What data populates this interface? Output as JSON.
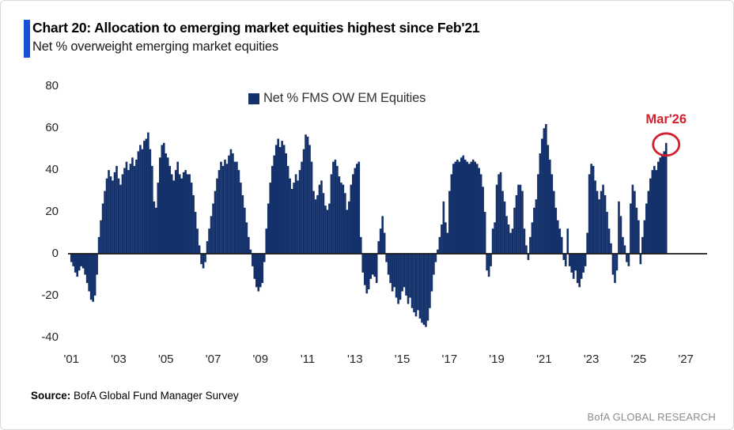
{
  "header": {
    "title": "Chart 20: Allocation to emerging market equities highest since Feb'21",
    "subtitle": "Net % overweight emerging market equities",
    "accent_color": "#1553D6"
  },
  "footer": {
    "source_label": "Source:",
    "source_text": " BofA Global Fund Manager Survey",
    "brand": "BofA GLOBAL RESEARCH"
  },
  "chart_data": {
    "type": "bar",
    "legend": "Net % FMS OW EM Equities",
    "frequency": "monthly",
    "x_start": "2001-01",
    "x_end": "2026-03",
    "ylim": [
      -40,
      80
    ],
    "y_ticks": [
      80,
      60,
      40,
      20,
      0,
      -20,
      -40
    ],
    "x_tick_labels": [
      "'01",
      "'03",
      "'05",
      "'07",
      "'09",
      "'11",
      "'13",
      "'15",
      "'17",
      "'19",
      "'21",
      "'23",
      "'25",
      "'27"
    ],
    "grid": "off",
    "legend_position": "top-center",
    "bar_color": "#14316B",
    "axis_color": "#1a1a1a",
    "annotation": {
      "label": "Mar'26",
      "month": "2026-03",
      "value": 53,
      "color": "#D2202E"
    },
    "values": [
      -4,
      -6,
      -9,
      -11,
      -8,
      -6,
      -7,
      -10,
      -14,
      -18,
      -22,
      -23,
      -20,
      -10,
      8,
      16,
      24,
      30,
      36,
      40,
      37,
      35,
      39,
      42,
      36,
      33,
      38,
      41,
      44,
      40,
      43,
      46,
      42,
      45,
      49,
      52,
      50,
      54,
      55,
      58,
      50,
      42,
      25,
      22,
      34,
      46,
      52,
      53,
      48,
      46,
      42,
      38,
      35,
      40,
      44,
      38,
      36,
      39,
      40,
      38,
      38,
      34,
      28,
      20,
      12,
      4,
      -5,
      -7,
      -4,
      6,
      12,
      18,
      24,
      30,
      36,
      40,
      44,
      42,
      45,
      43,
      47,
      50,
      48,
      44,
      44,
      40,
      34,
      28,
      22,
      15,
      8,
      2,
      -6,
      -12,
      -16,
      -18,
      -16,
      -14,
      -4,
      12,
      24,
      34,
      42,
      47,
      52,
      55,
      51,
      54,
      52,
      48,
      42,
      36,
      31,
      34,
      38,
      35,
      40,
      44,
      50,
      57,
      56,
      52,
      44,
      30,
      26,
      28,
      33,
      35,
      29,
      23,
      21,
      24,
      38,
      44,
      45,
      42,
      37,
      34,
      33,
      29,
      21,
      25,
      33,
      38,
      41,
      43,
      44,
      8,
      -9,
      -15,
      -19,
      -17,
      -12,
      -10,
      -11,
      -14,
      6,
      12,
      18,
      10,
      -4,
      -10,
      -14,
      -18,
      -16,
      -21,
      -24,
      -22,
      -18,
      -16,
      -20,
      -24,
      -21,
      -26,
      -28,
      -30,
      -27,
      -31,
      -33,
      -34,
      -35,
      -32,
      -26,
      -18,
      -10,
      -4,
      2,
      8,
      14,
      25,
      15,
      10,
      30,
      38,
      43,
      44,
      45,
      44,
      46,
      47,
      45,
      44,
      43,
      44,
      45,
      44,
      43,
      41,
      38,
      32,
      20,
      -8,
      -11,
      -6,
      12,
      15,
      33,
      38,
      39,
      30,
      25,
      18,
      14,
      10,
      12,
      22,
      28,
      33,
      33,
      30,
      12,
      4,
      -3,
      8,
      15,
      22,
      26,
      38,
      48,
      55,
      60,
      62,
      52,
      45,
      38,
      30,
      22,
      16,
      12,
      8,
      -3,
      -6,
      12,
      -6,
      -9,
      -12,
      -8,
      -14,
      -16,
      -12,
      -9,
      -6,
      10,
      38,
      43,
      42,
      35,
      30,
      26,
      30,
      33,
      28,
      20,
      12,
      5,
      -10,
      -14,
      -8,
      25,
      18,
      8,
      4,
      -4,
      -6,
      24,
      33,
      30,
      22,
      16,
      -5,
      8,
      16,
      24,
      30,
      36,
      40,
      42,
      40,
      44,
      46,
      47,
      49,
      53
    ]
  }
}
